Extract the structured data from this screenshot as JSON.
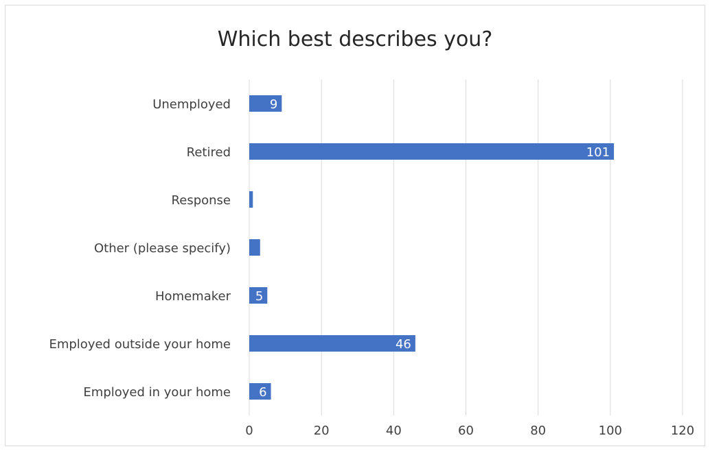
{
  "chart_data": {
    "type": "bar",
    "orientation": "horizontal",
    "title": "Which best describes you?",
    "xlabel": "",
    "ylabel": "",
    "categories": [
      "Unemployed",
      "Retired",
      "Response",
      "Other (please specify)",
      "Homemaker",
      "Employed outside your home",
      "Employed in your home"
    ],
    "values": [
      9,
      101,
      1,
      3,
      5,
      46,
      6
    ],
    "data_labels": [
      "9",
      "101",
      "",
      "",
      "5",
      "46",
      "6"
    ],
    "xlim": [
      0,
      120
    ],
    "xticks": [
      0,
      20,
      40,
      60,
      80,
      100,
      120
    ],
    "grid": true,
    "legend": "none",
    "colors": {
      "bar": "#4472c4",
      "grid": "#d9d9d9",
      "text": "#404040",
      "label": "#ffffff"
    }
  }
}
